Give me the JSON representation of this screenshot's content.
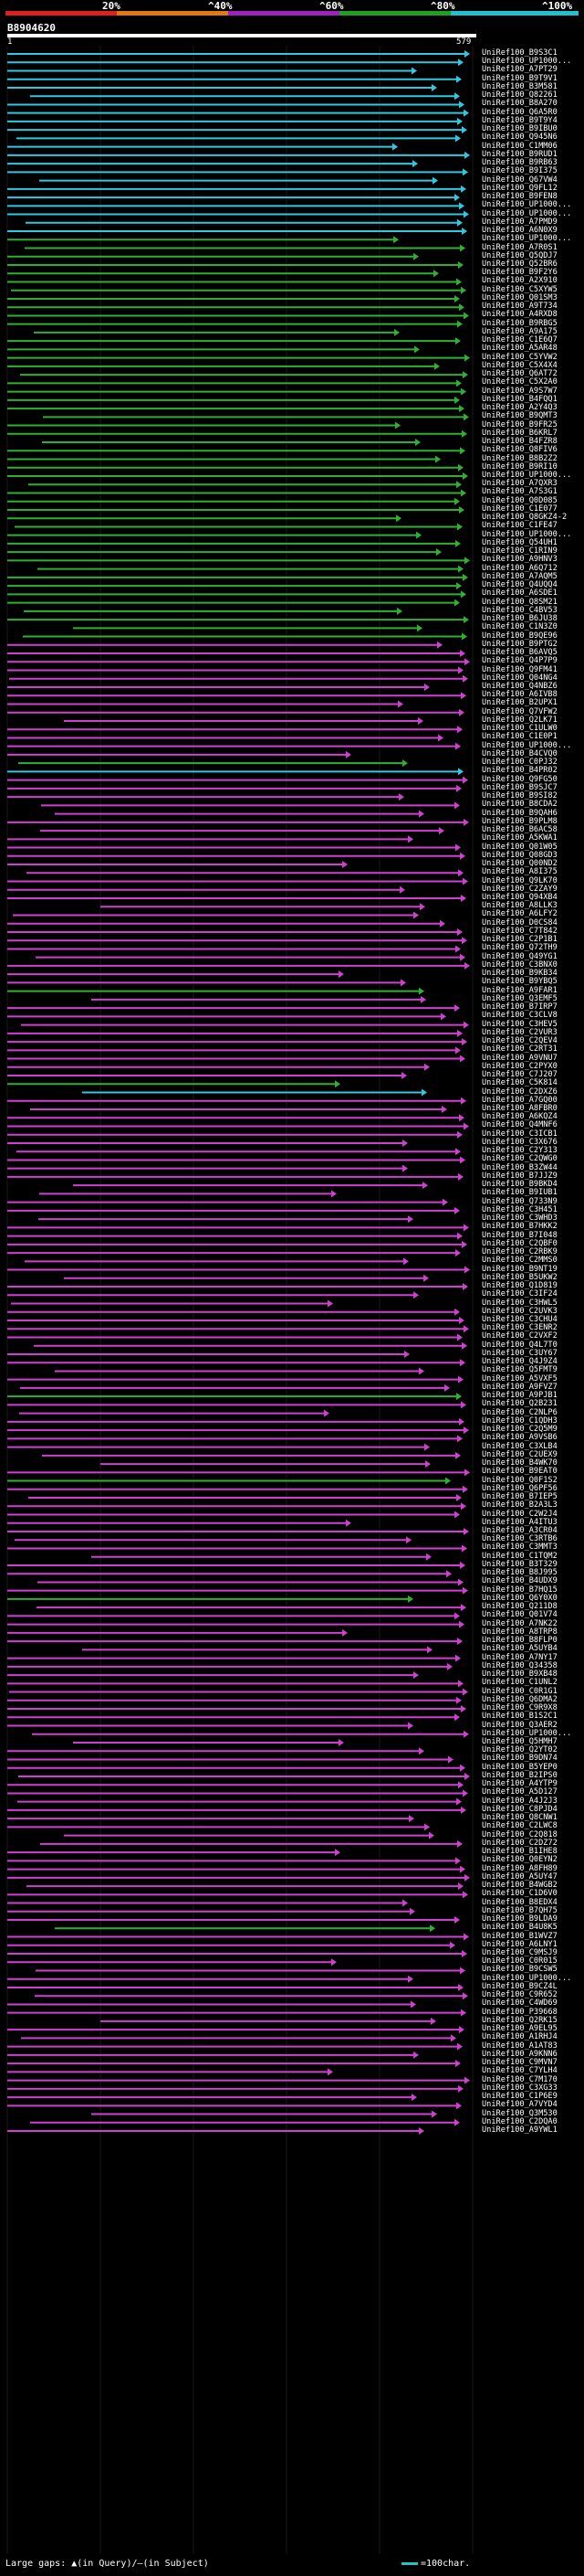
{
  "legend": {
    "marks": [
      "20%",
      "^40%",
      "^60%",
      "^80%",
      "^100%"
    ],
    "colors": [
      "#e02020",
      "#e07a10",
      "#a020c0",
      "#20a020",
      "#20c0d0"
    ]
  },
  "query": {
    "id": "B8904620",
    "start": "1",
    "end": "579"
  },
  "hit_colors": {
    "cyan": "#30c8e0",
    "green": "#30b030",
    "magenta": "#d040d0"
  },
  "hits": [
    "UniRef100_B9S3C1",
    "UniRef100_UP1000...",
    "UniRef100_A7PT29",
    "UniRef100_B9T9V1",
    "UniRef100_B3M581",
    "UniRef100_Q82261",
    "UniRef100_B8A270",
    "UniRef100_Q6A5R0",
    "UniRef100_B9T9Y4",
    "UniRef100_B9IBU0",
    "UniRef100_Q945N6",
    "UniRef100_C1MM06",
    "UniRef100_B9RUD1",
    "UniRef100_B9RB63",
    "UniRef100_B9I375",
    "UniRef100_Q67VW4",
    "UniRef100_Q9FL12",
    "UniRef100_B9FEN8",
    "UniRef100_UP1000...",
    "UniRef100_UP1000...",
    "UniRef100_A7PMD9",
    "UniRef100_A6N0X9",
    "UniRef100_UP1000...",
    "UniRef100_A7R0S1",
    "UniRef100_Q5QDJ7",
    "UniRef100_Q52BR6",
    "UniRef100_B9F2Y6",
    "UniRef100_A2X910",
    "UniRef100_C5XYW5",
    "UniRef100_Q01SM3",
    "UniRef100_A9T734",
    "UniRef100_A4RXD8",
    "UniRef100_B9RBG5",
    "UniRef100_A9A175",
    "UniRef100_C1E6Q7",
    "UniRef100_A5AR48",
    "UniRef100_C5YVW2",
    "UniRef100_C5X4X4",
    "UniRef100_Q6AT72",
    "UniRef100_C5X2A0",
    "UniRef100_A9S7W7",
    "UniRef100_B4FQQ1",
    "UniRef100_A2Y4Q3",
    "UniRef100_B9QMT3",
    "UniRef100_B9FR25",
    "UniRef100_B6KRL7",
    "UniRef100_B4FZR8",
    "UniRef100_Q8FIV6",
    "UniRef100_B8B2Z2",
    "UniRef100_B9RI10",
    "UniRef100_UP1000...",
    "UniRef100_A7QXR3",
    "UniRef100_A7S3G1",
    "UniRef100_Q0D085",
    "UniRef100_C1E077",
    "UniRef100_Q8GKZ4-2",
    "UniRef100_C1FE47",
    "UniRef100_UP1000...",
    "UniRef100_Q54UH1",
    "UniRef100_C1RIN9",
    "UniRef100_A9HNV3",
    "UniRef100_A6Q712",
    "UniRef100_A7AQM5",
    "UniRef100_Q4UQQ4",
    "UniRef100_A6SDE1",
    "UniRef100_Q8SM21",
    "UniRef100_C4BV53",
    "UniRef100_B6JU38",
    "UniRef100_C1N3Z0",
    "UniRef100_B9QE96",
    "UniRef100_B9PTG2",
    "UniRef100_B6AVQ5",
    "UniRef100_Q4P7P9",
    "UniRef100_Q9FM41",
    "UniRef100_Q04NG4",
    "UniRef100_Q4NBZ6",
    "UniRef100_A6IVB8",
    "UniRef100_B2UPX1",
    "UniRef100_Q7VFW2",
    "UniRef100_Q2LK71",
    "UniRef100_C1ULW0",
    "UniRef100_C1E0P1",
    "UniRef100_UP1000...",
    "UniRef100_B4CVQ0",
    "UniRef100_C0PJ32",
    "UniRef100_B4PR02",
    "UniRef100_Q9FG50",
    "UniRef100_B9SJC7",
    "UniRef100_B9SI82",
    "UniRef100_B8CDA2",
    "UniRef100_B9QAH6",
    "UniRef100_B9PLM8",
    "UniRef100_B6AC58",
    "UniRef100_A5KWA1",
    "UniRef100_Q01W05",
    "UniRef100_Q08GD3",
    "UniRef100_Q00ND2",
    "UniRef100_A8I375",
    "UniRef100_Q9LK70",
    "UniRef100_C2ZAY9",
    "UniRef100_Q94XB4",
    "UniRef100_A8LLK3",
    "UniRef100_A6LFY2",
    "UniRef100_D0CS84",
    "UniRef100_C7T842",
    "UniRef100_C2P1B1",
    "UniRef100_Q72TH9",
    "UniRef100_Q49YG1",
    "UniRef100_C3BNX0",
    "UniRef100_B9KB34",
    "UniRef100_B9YBQ5",
    "UniRef100_A9FAR1",
    "UniRef100_Q3EMF5",
    "UniRef100_B7IRP7",
    "UniRef100_C3CLV8",
    "UniRef100_C3HEV5",
    "UniRef100_C2VUR3",
    "UniRef100_C2QEV4",
    "UniRef100_C2RT31",
    "UniRef100_A9VNU7",
    "UniRef100_C2PYX0",
    "UniRef100_C7J207",
    "UniRef100_C5K814",
    "UniRef100_C2DXZ6",
    "UniRef100_A7GQ00",
    "UniRef100_A8FBR0",
    "UniRef100_A6KQZ4",
    "UniRef100_Q4MNF6",
    "UniRef100_C3ICB1",
    "UniRef100_C3X676",
    "UniRef100_C2Y313",
    "UniRef100_C2QWG0",
    "UniRef100_B3ZW44",
    "UniRef100_B7JJZ9",
    "UniRef100_B9BKD4",
    "UniRef100_B9IUB1",
    "UniRef100_Q733N9",
    "UniRef100_C3H451",
    "UniRef100_C3WHD3",
    "UniRef100_B7HKK2",
    "UniRef100_B7I048",
    "UniRef100_C2QBF0",
    "UniRef100_C2RBK9",
    "UniRef100_C2MMS0",
    "UniRef100_B9NT19",
    "UniRef100_B5UKW2",
    "UniRef100_Q1D819",
    "UniRef100_C3IF24",
    "UniRef100_C3HWL5",
    "UniRef100_C2UVK3",
    "UniRef100_C3CHU4",
    "UniRef100_C3ENR2",
    "UniRef100_C2VXF2",
    "UniRef100_Q4L7T0",
    "UniRef100_C3UY67",
    "UniRef100_Q4J9Z4",
    "UniRef100_Q5FMT9",
    "UniRef100_A5VXF5",
    "UniRef100_A9FVZ7",
    "UniRef100_A9PJB1",
    "UniRef100_Q2B231",
    "UniRef100_C2NLP6",
    "UniRef100_C1QDH3",
    "UniRef100_C2Q5M9",
    "UniRef100_A9VSB6",
    "UniRef100_C3XLB4",
    "UniRef100_C2UEX9",
    "UniRef100_B4WK70",
    "UniRef100_B9EAT0",
    "UniRef100_Q0F1S2",
    "UniRef100_Q6PF56",
    "UniRef100_B7IEP5",
    "UniRef100_B2A3L3",
    "UniRef100_C2W2J4",
    "UniRef100_A4ITU3",
    "UniRef100_A3CR04",
    "UniRef100_C3RTB6",
    "UniRef100_C3MMT3",
    "UniRef100_C1TQM2",
    "UniRef100_B3T329",
    "UniRef100_B8J995",
    "UniRef100_B4UDX9",
    "UniRef100_B7HQ15",
    "UniRef100_Q6Y0X0",
    "UniRef100_Q211D8",
    "UniRef100_Q01V74",
    "UniRef100_A7NK22",
    "UniRef100_A8TRP8",
    "UniRef100_B8FLP0",
    "UniRef100_A5UYB4",
    "UniRef100_A7NY17",
    "UniRef100_Q34358",
    "UniRef100_B9XB48",
    "UniRef100_C1UNL2",
    "UniRef100_C0R1G1",
    "UniRef100_Q6DMA2",
    "UniRef100_C9R9X8",
    "UniRef100_B1S2C1",
    "UniRef100_Q3AER2",
    "UniRef100_UP1000...",
    "UniRef100_Q5HMH7",
    "UniRef100_Q2YT02",
    "UniRef100_B9DN74",
    "UniRef100_B5YEP0",
    "UniRef100_B2IPS0",
    "UniRef100_A4YTP9",
    "UniRef100_A5D127",
    "UniRef100_A4J2J3",
    "UniRef100_C8PJD4",
    "UniRef100_Q8CNW1",
    "UniRef100_C2LWC8",
    "UniRef100_C2Q818",
    "UniRef100_C2DZ72",
    "UniRef100_B1IHE8",
    "UniRef100_Q0EYN2",
    "UniRef100_A8FH89",
    "UniRef100_A5UY47",
    "UniRef100_B4WGB2",
    "UniRef100_C1D6V0",
    "UniRef100_B8EDX4",
    "UniRef100_B7QH75",
    "UniRef100_B9LDA9",
    "UniRef100_B4U8K5",
    "UniRef100_B1WVZ7",
    "UniRef100_A6LNY1",
    "UniRef100_C9MSJ9",
    "UniRef100_C0R015",
    "UniRef100_B9CSW5",
    "UniRef100_UP1000...",
    "UniRef100_B9CZ4L",
    "UniRef100_C9R652",
    "UniRef100_C4WD69",
    "UniRef100_P39668",
    "UniRef100_Q2RK15",
    "UniRef100_A9EL95",
    "UniRef100_A1RHJ4",
    "UniRef100_A1AT83",
    "UniRef100_A9KNN6",
    "UniRef100_C9MVN7",
    "UniRef100_C7YLH4",
    "UniRef100_C7M170",
    "UniRef100_C3XG33",
    "UniRef100_C1P6E9",
    "UniRef100_A7VYD4",
    "UniRef100_Q3M530",
    "UniRef100_C2DQA0",
    "UniRef100_A9YWL1"
  ],
  "footer": {
    "gaps_text": "Large gaps: ▲(in Query)/—(in Subject)",
    "scale_text": "=100char."
  }
}
